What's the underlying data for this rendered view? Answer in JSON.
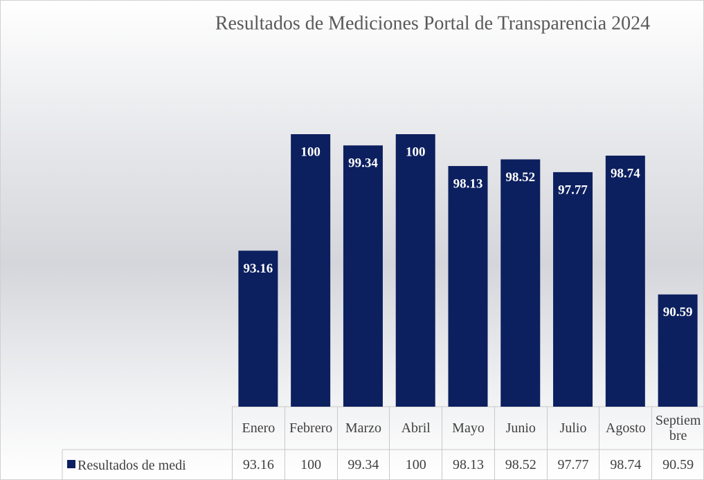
{
  "chart_data": {
    "type": "bar",
    "title": "Resultados de Mediciones Portal de Transparencia 2024",
    "categories": [
      "Enero",
      "Febrero",
      "Marzo",
      "Abril",
      "Mayo",
      "Junio",
      "Julio",
      "Agosto",
      "Septiembre"
    ],
    "series": [
      {
        "name": "Resultados de medi",
        "color": "#0c1f5f",
        "values": [
          93.16,
          100,
          99.34,
          100,
          98.13,
          98.52,
          97.77,
          98.74,
          90.59
        ]
      }
    ],
    "ylim": [
      84,
      100
    ]
  }
}
